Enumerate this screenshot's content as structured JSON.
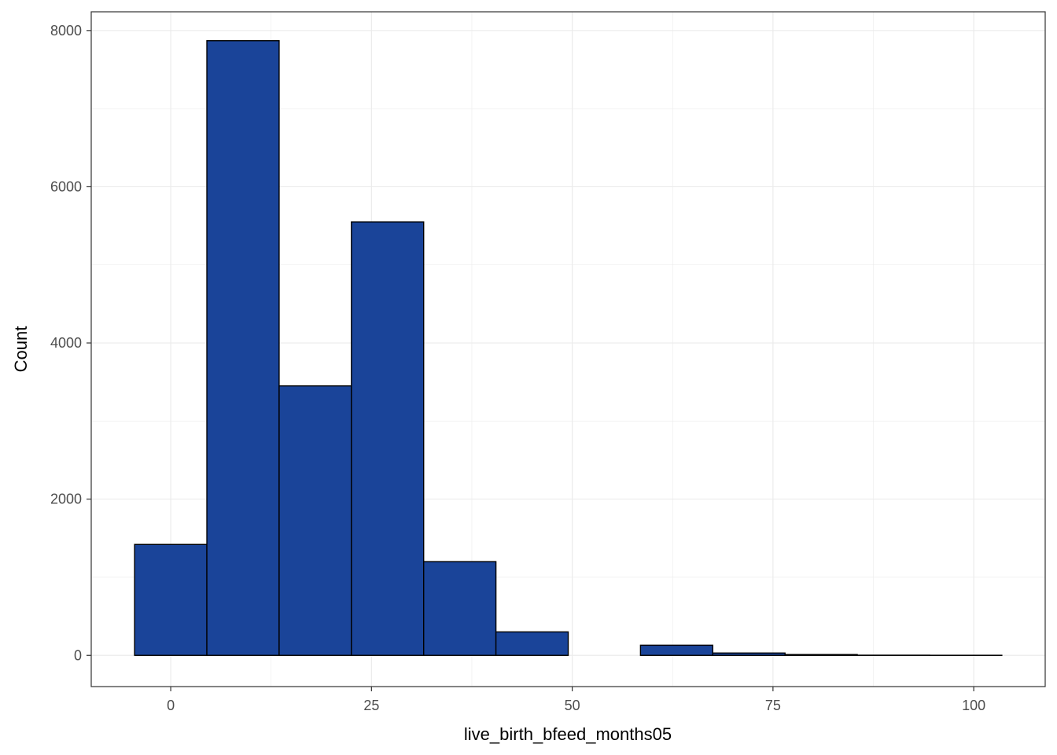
{
  "chart_data": {
    "type": "bar",
    "subtype": "histogram",
    "xlabel": "live_birth_bfeed_months05",
    "ylabel": "Count",
    "xlim": [
      -9.9,
      108.9
    ],
    "ylim": [
      -400,
      8240
    ],
    "x_ticks": [
      0,
      25,
      50,
      75,
      100
    ],
    "y_ticks": [
      0,
      2000,
      4000,
      6000,
      8000
    ],
    "grid": true,
    "bins": [
      {
        "x0": -4.5,
        "x1": 4.5,
        "count": 1420
      },
      {
        "x0": 4.5,
        "x1": 13.5,
        "count": 7870
      },
      {
        "x0": 13.5,
        "x1": 22.5,
        "count": 3450
      },
      {
        "x0": 22.5,
        "x1": 31.5,
        "count": 5550
      },
      {
        "x0": 31.5,
        "x1": 40.5,
        "count": 1200
      },
      {
        "x0": 40.5,
        "x1": 49.5,
        "count": 300
      },
      {
        "x0": 49.5,
        "x1": 58.5,
        "count": 0
      },
      {
        "x0": 58.5,
        "x1": 67.5,
        "count": 130
      },
      {
        "x0": 67.5,
        "x1": 76.5,
        "count": 30
      },
      {
        "x0": 76.5,
        "x1": 85.5,
        "count": 10
      },
      {
        "x0": 85.5,
        "x1": 94.5,
        "count": 2
      },
      {
        "x0": 94.5,
        "x1": 103.5,
        "count": 1
      }
    ],
    "fill_color": "#1a4499",
    "outline_color": "#000000",
    "panel_border_color": "#333333",
    "grid_color": "#ebebeb"
  }
}
